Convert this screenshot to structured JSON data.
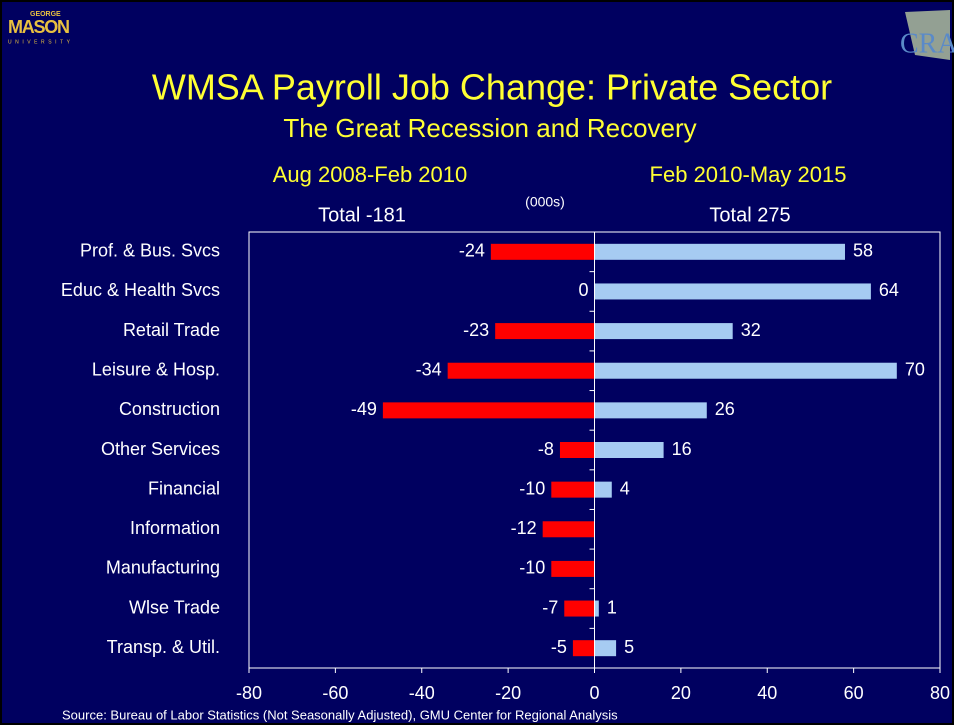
{
  "chart_data": {
    "type": "bar",
    "orientation": "horizontal",
    "title": "WMSA Payroll Job Change: Private Sector",
    "subtitle": "The Great Recession and Recovery",
    "unit_label": "(000s)",
    "source": "Source: Bureau of Labor Statistics (Not Seasonally Adjusted), GMU Center for Regional Analysis",
    "logos": {
      "left": [
        "GEORGE",
        "MASON",
        "UNIVERSITY"
      ],
      "right": "CRA"
    },
    "categories": [
      "Prof. & Bus. Svcs",
      "Educ & Health Svcs",
      "Retail Trade",
      "Leisure & Hosp.",
      "Construction",
      "Other Services",
      "Financial",
      "Information",
      "Manufacturing",
      "Wlse Trade",
      "Transp. & Util."
    ],
    "series": [
      {
        "name": "Aug 2008-Feb 2010",
        "total": "Total -181",
        "color": "#ff0000",
        "values": [
          -24,
          0,
          -23,
          -34,
          -49,
          -8,
          -10,
          -12,
          -10,
          -7,
          -5
        ]
      },
      {
        "name": "Feb 2010-May 2015",
        "total": "Total 275",
        "color": "#a6cbf2",
        "values": [
          58,
          64,
          32,
          70,
          26,
          16,
          4,
          null,
          null,
          1,
          5
        ]
      }
    ],
    "xlim": [
      -80,
      80
    ],
    "xticks": [
      -80,
      -60,
      -40,
      -20,
      0,
      20,
      40,
      60,
      80
    ]
  }
}
